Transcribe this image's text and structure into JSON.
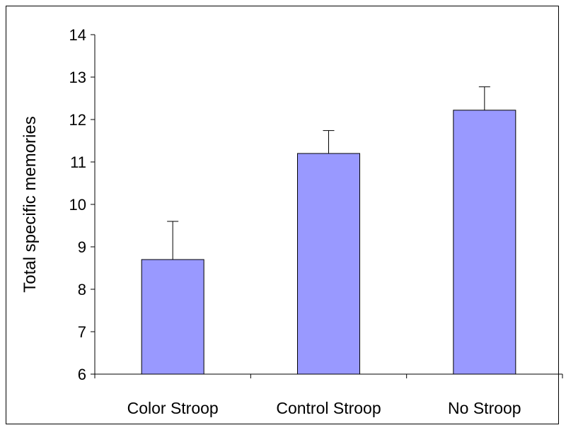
{
  "chart_data": {
    "type": "bar",
    "categories": [
      "Color Stroop",
      "Control Stroop",
      "No Stroop"
    ],
    "values": [
      8.7,
      11.2,
      12.22
    ],
    "error_upper": [
      9.6,
      11.74,
      12.77
    ],
    "ylabel": "Total specific memories",
    "xlabel": "",
    "title": "",
    "ylim": [
      6,
      14
    ],
    "yticks": [
      6,
      7,
      8,
      9,
      10,
      11,
      12,
      13,
      14
    ],
    "grid": false,
    "bar_color": "#9999ff",
    "bar_stroke": "#000000"
  }
}
